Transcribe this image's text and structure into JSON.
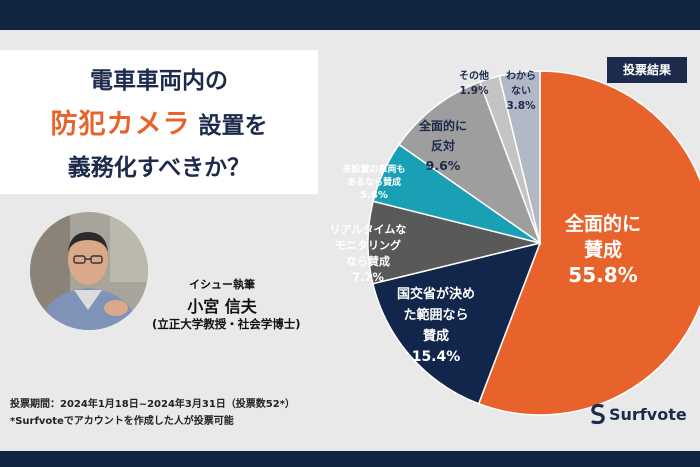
{
  "title": {
    "line1": "電車車両内の",
    "line2_highlight": "防犯カメラ",
    "line2_rest": "設置を",
    "line3": "義務化すべきか？"
  },
  "author": {
    "role": "イシュー執筆",
    "name": "小宮 信夫",
    "affiliation": "(立正大学教授・社会学博士)"
  },
  "footer": {
    "period": "投票期間：2024年1月18日~2024年3月31日（投票数52*）",
    "note": "*Surfvoteでアカウントを作成した人が投票可能"
  },
  "badge": "投票結果",
  "logo": "Surfvote",
  "icons": [
    "surfvote-logo-icon",
    "author-photo"
  ],
  "chart_data": {
    "type": "pie",
    "slices": [
      {
        "label_lines": [
          "全面的に",
          "賛成"
        ],
        "value_label": "55.8%",
        "value": 55.8,
        "color": "#e8632b",
        "text_color": "#ffffff"
      },
      {
        "label_lines": [
          "国交省が決め",
          "た範囲なら",
          "賛成"
        ],
        "value_label": "15.4%",
        "value": 15.4,
        "color": "#12254a",
        "text_color": "#ffffff"
      },
      {
        "label_lines": [
          "リアルタイムな",
          "モニタリング",
          "なら賛成"
        ],
        "value_label": "7.7%",
        "value": 7.7,
        "color": "#595959",
        "text_color": "#ffffff"
      },
      {
        "label_lines": [
          "未設置の車両も",
          "あるなら賛成"
        ],
        "value_label": "5.8%",
        "value": 5.8,
        "color": "#1aa0b5",
        "text_color": "#ffffff"
      },
      {
        "label_lines": [
          "全面的に",
          "反対"
        ],
        "value_label": "9.6%",
        "value": 9.6,
        "color": "#9e9e9e",
        "text_color": "#1c2b4c"
      },
      {
        "label_lines": [
          "その他"
        ],
        "value_label": "1.9%",
        "value": 1.9,
        "color": "#c4c4c4",
        "text_color": "#1c2b4c"
      },
      {
        "label_lines": [
          "わから",
          "ない"
        ],
        "value_label": "3.8%",
        "value": 3.8,
        "color": "#b3b8c6",
        "text_color": "#1c2b4c"
      }
    ]
  }
}
